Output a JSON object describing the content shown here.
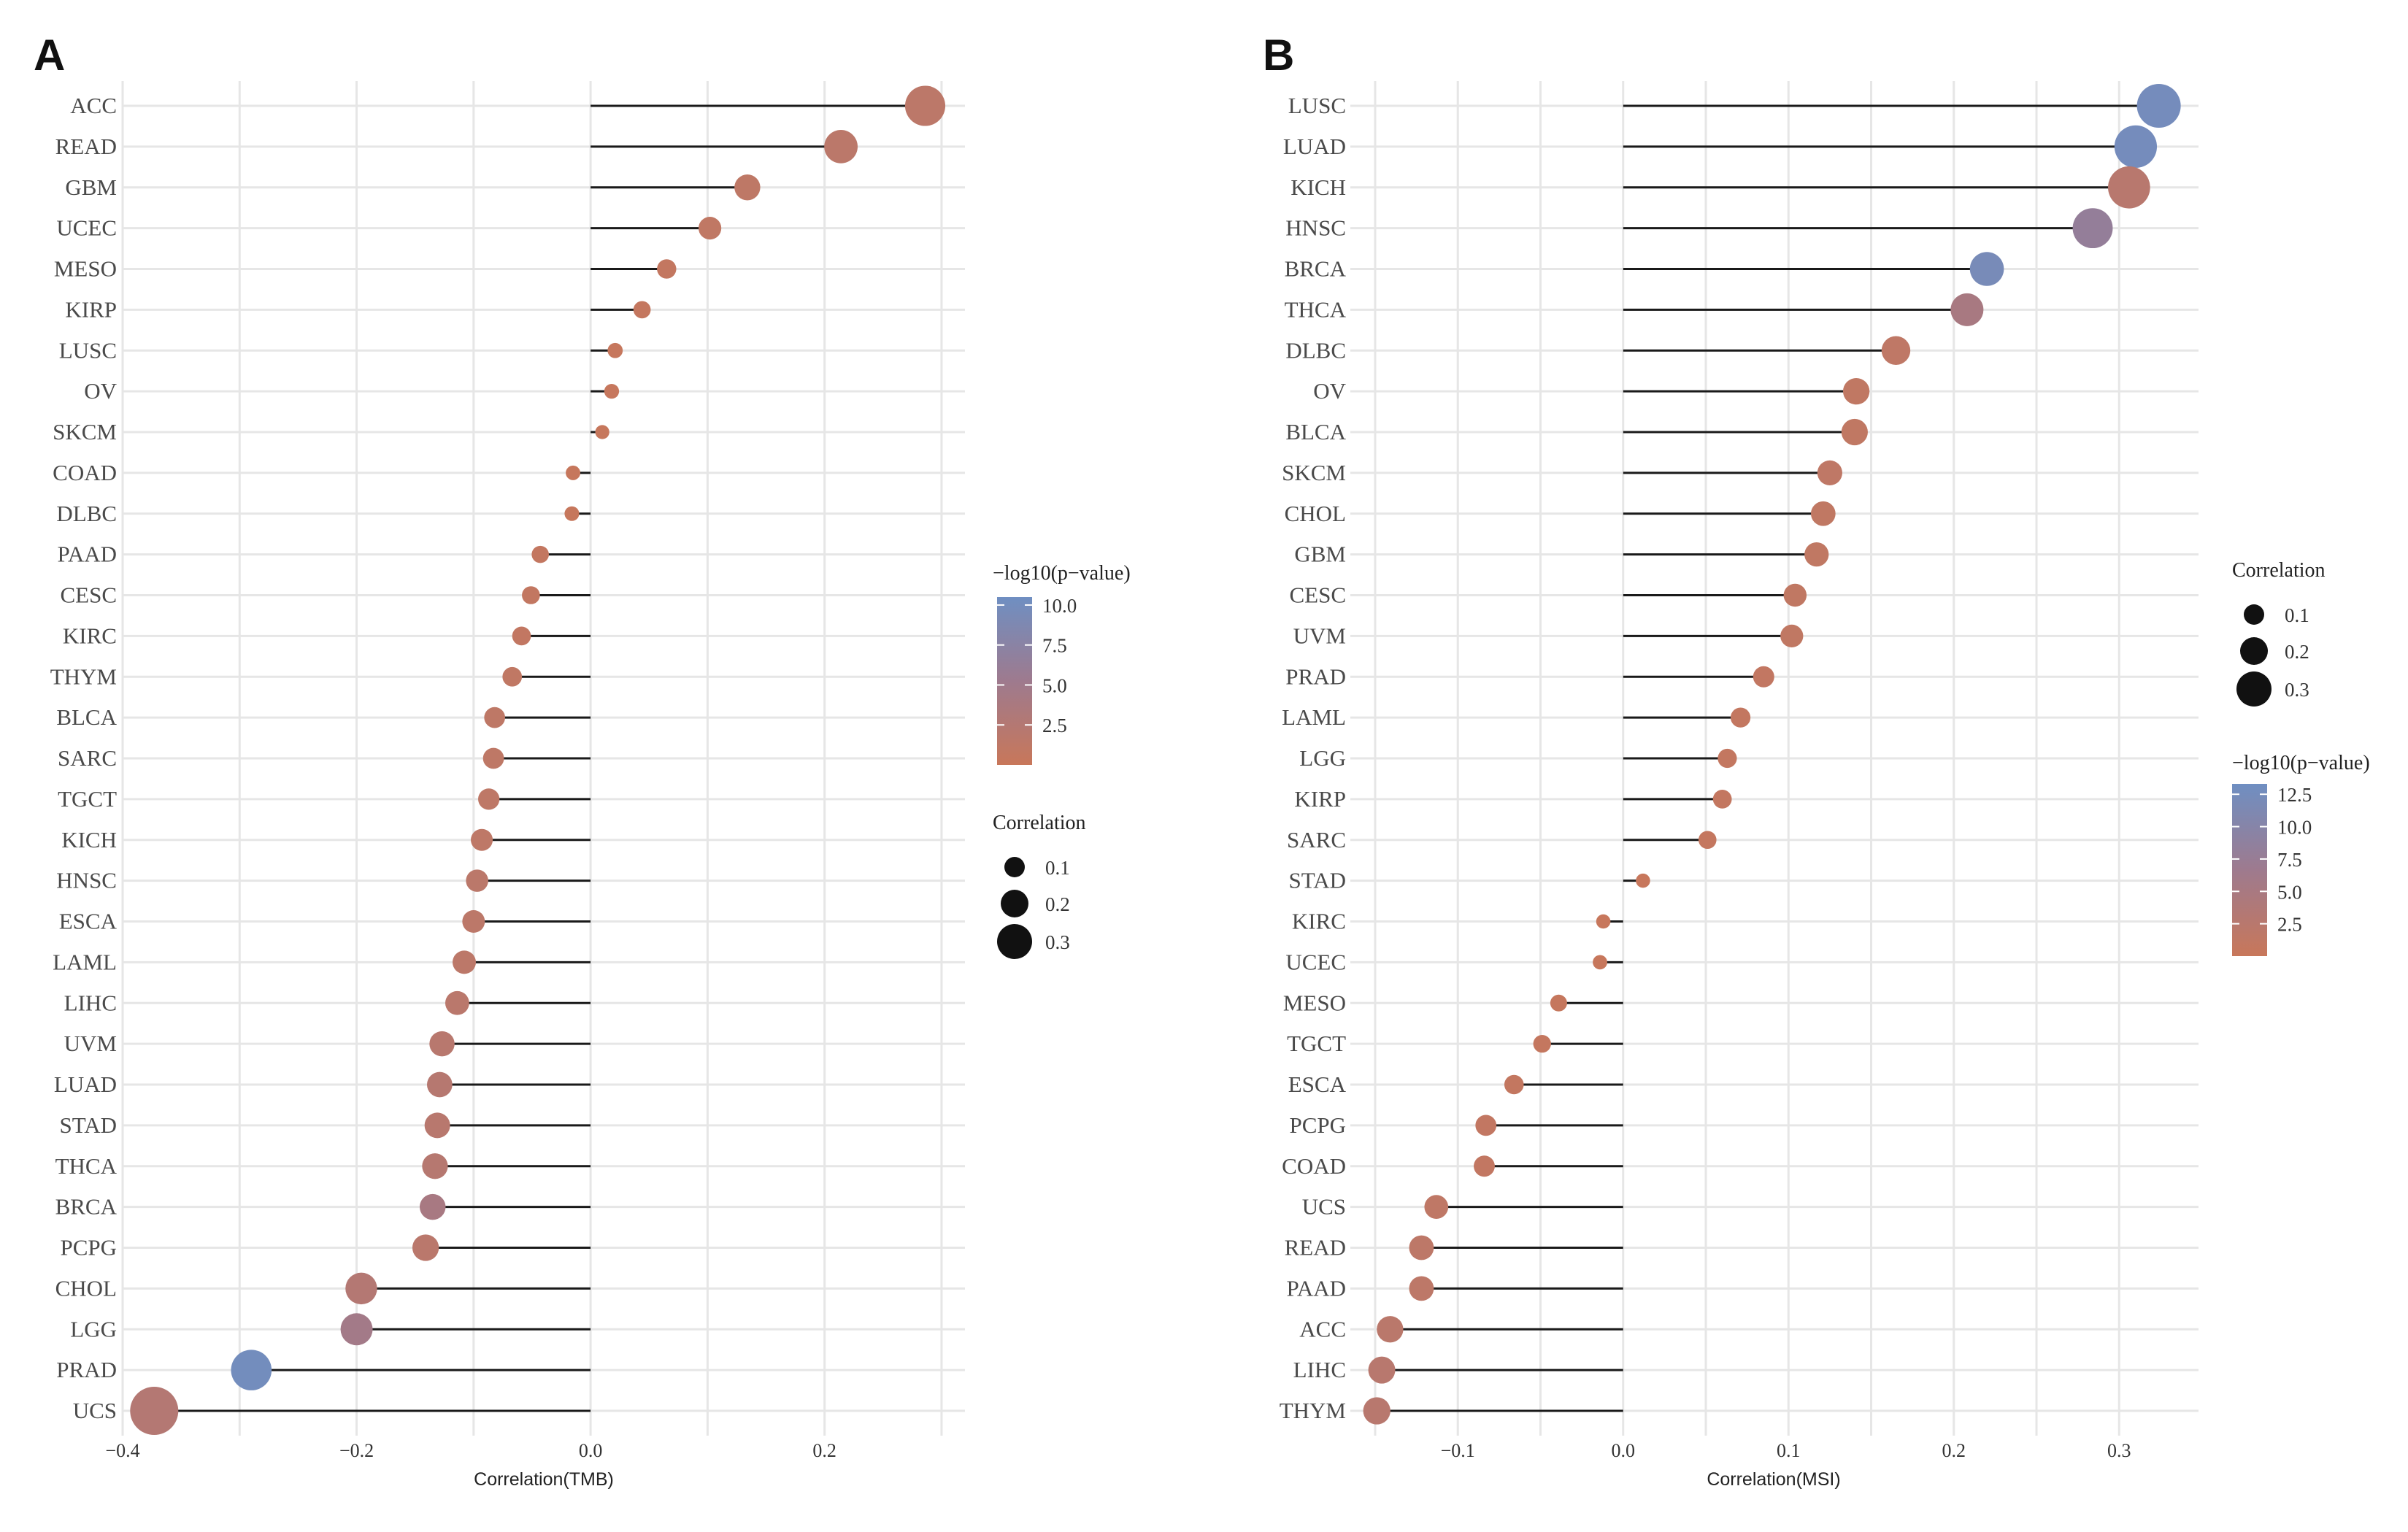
{
  "colors": {
    "low": "#c8775a",
    "mid": "#9e7a8e",
    "high": "#6f8fc2",
    "stem": "#1a1a1a",
    "grid": "#e6e6e6"
  },
  "chart_data": [
    {
      "type": "lollipop",
      "panel": "A",
      "xlabel": "Correlation(TMB)",
      "xlim": [
        -0.4,
        0.32
      ],
      "xticks": [
        -0.4,
        -0.2,
        0.0,
        0.2
      ],
      "xtick_labels": [
        "−0.4",
        "−0.2",
        "0.0",
        "0.2"
      ],
      "categories": [
        "ACC",
        "READ",
        "GBM",
        "UCEC",
        "MESO",
        "KIRP",
        "LUSC",
        "OV",
        "SKCM",
        "COAD",
        "DLBC",
        "PAAD",
        "CESC",
        "KIRC",
        "THYM",
        "BLCA",
        "SARC",
        "TGCT",
        "KICH",
        "HNSC",
        "ESCA",
        "LAML",
        "LIHC",
        "UVM",
        "LUAD",
        "STAD",
        "THCA",
        "BRCA",
        "PCPG",
        "CHOL",
        "LGG",
        "PRAD",
        "UCS"
      ],
      "values": [
        0.286,
        0.214,
        0.134,
        0.102,
        0.065,
        0.044,
        0.021,
        0.018,
        0.01,
        -0.015,
        -0.016,
        -0.043,
        -0.051,
        -0.059,
        -0.067,
        -0.082,
        -0.083,
        -0.087,
        -0.093,
        -0.097,
        -0.1,
        -0.108,
        -0.114,
        -0.127,
        -0.129,
        -0.131,
        -0.133,
        -0.135,
        -0.141,
        -0.196,
        -0.2,
        -0.29,
        -0.373
      ],
      "neg_log10_p": [
        1.5,
        1.6,
        1.2,
        1.0,
        0.6,
        0.5,
        0.3,
        0.3,
        0.2,
        0.2,
        0.2,
        0.6,
        0.7,
        0.8,
        1.0,
        1.2,
        1.2,
        1.3,
        1.3,
        1.6,
        1.5,
        1.5,
        1.8,
        2.0,
        2.2,
        2.0,
        2.2,
        4.0,
        1.8,
        2.5,
        4.6,
        10.0,
        2.5
      ],
      "color_legend": {
        "title": "−log10(p−value)",
        "range": [
          0,
          10.5
        ],
        "ticks": [
          10.0,
          7.5,
          5.0,
          2.5
        ],
        "tick_labels": [
          "10.0",
          "7.5",
          "5.0",
          "2.5"
        ]
      },
      "size_legend": {
        "title": "Correlation",
        "values": [
          0.1,
          0.2,
          0.3
        ],
        "labels": [
          "0.1",
          "0.2",
          "0.3"
        ]
      }
    },
    {
      "type": "lollipop",
      "panel": "B",
      "xlabel": "Correlation(MSI)",
      "xlim": [
        -0.165,
        0.348
      ],
      "xticks": [
        -0.1,
        0.0,
        0.1,
        0.2,
        0.3
      ],
      "xtick_labels": [
        "−0.1",
        "0.0",
        "0.1",
        "0.2",
        "0.3"
      ],
      "categories": [
        "LUSC",
        "LUAD",
        "KICH",
        "HNSC",
        "BRCA",
        "THCA",
        "DLBC",
        "OV",
        "BLCA",
        "SKCM",
        "CHOL",
        "GBM",
        "CESC",
        "UVM",
        "PRAD",
        "LAML",
        "LGG",
        "KIRP",
        "SARC",
        "STAD",
        "KIRC",
        "UCEC",
        "MESO",
        "TGCT",
        "ESCA",
        "PCPG",
        "COAD",
        "UCS",
        "READ",
        "PAAD",
        "ACC",
        "LIHC",
        "THYM"
      ],
      "values": [
        0.324,
        0.31,
        0.306,
        0.284,
        0.22,
        0.208,
        0.165,
        0.141,
        0.14,
        0.125,
        0.121,
        0.117,
        0.104,
        0.102,
        0.085,
        0.071,
        0.063,
        0.06,
        0.051,
        0.012,
        -0.012,
        -0.014,
        -0.039,
        -0.049,
        -0.066,
        -0.083,
        -0.084,
        -0.113,
        -0.122,
        -0.122,
        -0.141,
        -0.146,
        -0.149
      ],
      "neg_log10_p": [
        12.5,
        12.5,
        2.5,
        8.0,
        12.0,
        5.0,
        1.5,
        1.2,
        1.2,
        1.5,
        1.2,
        1.2,
        1.2,
        1.2,
        1.0,
        0.8,
        0.8,
        0.8,
        0.6,
        0.2,
        0.2,
        0.2,
        0.4,
        0.6,
        0.8,
        1.0,
        1.0,
        1.5,
        1.8,
        1.8,
        2.2,
        2.5,
        2.5
      ],
      "color_legend": {
        "title": "−log10(p−value)",
        "range": [
          0,
          13.3
        ],
        "ticks": [
          12.5,
          10.0,
          7.5,
          5.0,
          2.5
        ],
        "tick_labels": [
          "12.5",
          "10.0",
          "7.5",
          "5.0",
          "2.5"
        ]
      },
      "size_legend": {
        "title": "Correlation",
        "values": [
          0.1,
          0.2,
          0.3
        ],
        "labels": [
          "0.1",
          "0.2",
          "0.3"
        ]
      }
    }
  ]
}
